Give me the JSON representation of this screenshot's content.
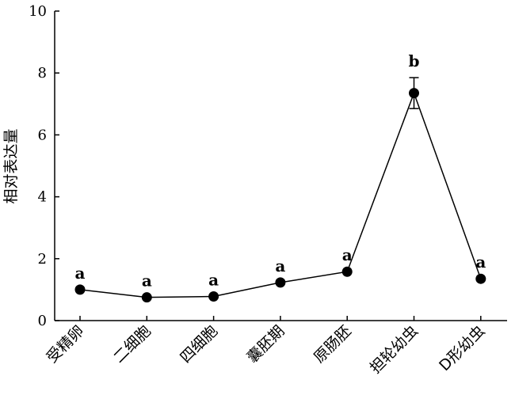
{
  "chart_data": {
    "type": "line",
    "title": "",
    "xlabel": "",
    "ylabel": "相对表达量",
    "ylim": [
      0,
      10
    ],
    "yticks": [
      0,
      2,
      4,
      6,
      8,
      10
    ],
    "grid": false,
    "categories": [
      "受精卵",
      "二细胞",
      "四细胞",
      "囊胚期",
      "原肠胚",
      "担轮幼虫",
      "D形幼虫"
    ],
    "series": [
      {
        "values": [
          1.0,
          0.75,
          0.78,
          1.23,
          1.58,
          7.35,
          1.35
        ],
        "error": [
          0,
          0,
          0,
          0,
          0,
          0.5,
          0
        ],
        "significance": [
          "a",
          "a",
          "a",
          "a",
          "a",
          "b",
          "a"
        ]
      }
    ],
    "colors": {
      "line": "#000000",
      "marker": "#000000"
    }
  }
}
